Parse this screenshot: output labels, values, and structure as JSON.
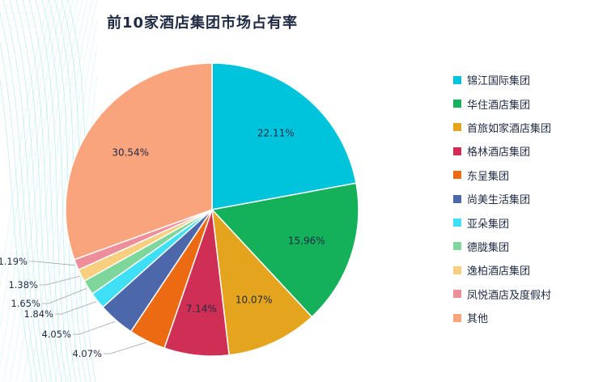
{
  "chart_data": {
    "type": "pie",
    "title": "前10家酒店集团市场占有率",
    "slices": [
      {
        "name": "锦江国际集团",
        "value": 22.11,
        "label": "22.11%",
        "color": "#00c4dc"
      },
      {
        "name": "华住酒店集团",
        "value": 15.96,
        "label": "15.96%",
        "color": "#14b05a"
      },
      {
        "name": "首旅如家酒店集团",
        "value": 10.07,
        "label": "10.07%",
        "color": "#e5a41d"
      },
      {
        "name": "格林酒店集团",
        "value": 7.14,
        "label": "7.14%",
        "color": "#cf2f54"
      },
      {
        "name": "东呈集团",
        "value": 4.07,
        "label": "4.07%",
        "color": "#ec6a12"
      },
      {
        "name": "尚美生活集团",
        "value": 4.05,
        "label": "4.05%",
        "color": "#4d67ab"
      },
      {
        "name": "亚朵集团",
        "value": 1.84,
        "label": "1.84%",
        "color": "#3fe0f6"
      },
      {
        "name": "德胧集团",
        "value": 1.65,
        "label": "1.65%",
        "color": "#7fd69a"
      },
      {
        "name": "逸柏酒店集团",
        "value": 1.38,
        "label": "1.38%",
        "color": "#f7cf7e"
      },
      {
        "name": "凤悦酒店及度假村",
        "value": 1.19,
        "label": "1.19%",
        "color": "#ee8e9a"
      },
      {
        "name": "其他",
        "value": 30.54,
        "label": "30.54%",
        "color": "#f9a47c"
      }
    ],
    "legend_position": "right"
  }
}
